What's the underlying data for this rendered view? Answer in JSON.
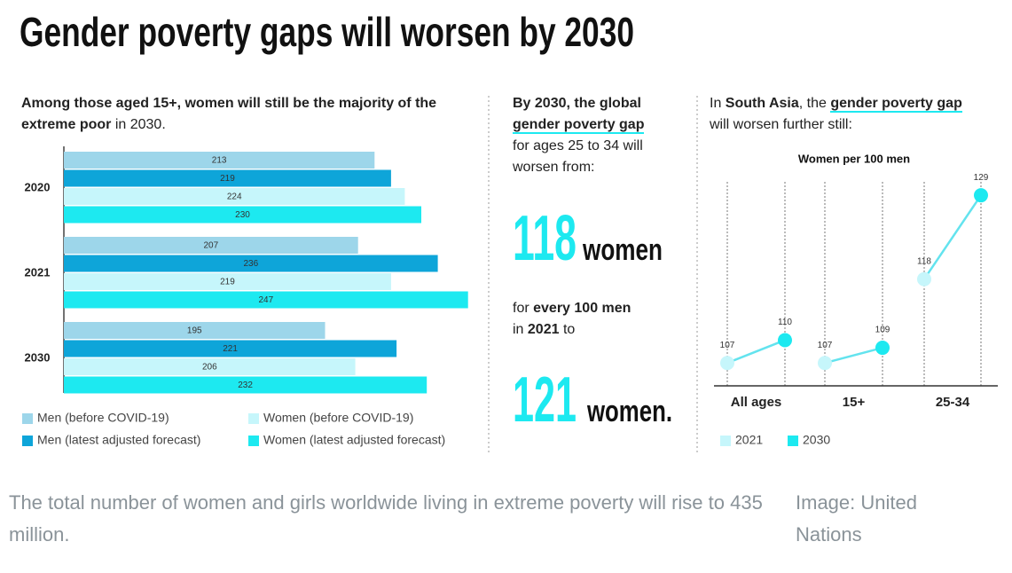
{
  "title": "Gender poverty gaps will worsen by 2030",
  "left_note": {
    "bold": "Among those aged 15+, women will still be the majority of the extreme poor",
    "rest": "in 2030."
  },
  "middle": {
    "intro_bold": "By 2030, the global",
    "intro_link": "gender poverty gap",
    "intro_rest": "for ages 25 to 34 will worsen from:",
    "from_number": "118",
    "from_unit": "women",
    "mid_a": "for",
    "mid_b": "every 100 men",
    "mid_c": "in",
    "mid_d": "2021",
    "mid_e": "to",
    "to_number": "121",
    "to_unit": "women."
  },
  "right_note": {
    "a": "In",
    "b": "South Asia",
    "c": ", the",
    "d": "gender poverty gap",
    "e": "will worsen further still:"
  },
  "caption": "The total number of women and girls worldwide living in extreme poverty will rise to 435 million.",
  "credit": "Image: United Nations",
  "chart_data": [
    {
      "type": "bar",
      "orientation": "horizontal",
      "categories": [
        "2020",
        "2021",
        "2030"
      ],
      "series": [
        {
          "name": "Men (before COVID-19)",
          "color": "#9dd6ea",
          "values": [
            213,
            207,
            195
          ]
        },
        {
          "name": "Men (latest adjusted forecast)",
          "color": "#0ea5d9",
          "values": [
            219,
            236,
            221
          ]
        },
        {
          "name": "Women (before COVID-19)",
          "color": "#c6f6fb",
          "values": [
            224,
            219,
            206
          ]
        },
        {
          "name": "Women (latest adjusted forecast)",
          "color": "#1de9f0",
          "values": [
            230,
            247,
            232
          ]
        }
      ],
      "xlim": [
        100,
        250
      ]
    },
    {
      "type": "slope",
      "subtitle": "Women per 100 men",
      "categories": [
        "All ages",
        "15+",
        "25-34"
      ],
      "series": [
        {
          "name": "2021",
          "color": "#c6f6fb",
          "values": [
            107,
            107,
            118
          ]
        },
        {
          "name": "2030",
          "color": "#1de9f0",
          "values": [
            110,
            109,
            129
          ]
        }
      ],
      "line_color": "#63e3ee",
      "ylim": [
        104,
        131
      ]
    }
  ]
}
